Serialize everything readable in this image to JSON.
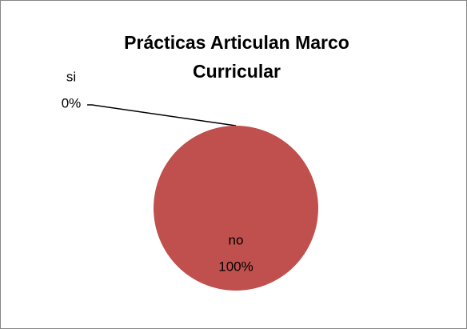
{
  "chart_data": {
    "type": "pie",
    "title": "Prácticas Articulan Marco Curricular",
    "categories": [
      "si",
      "no"
    ],
    "values": [
      0,
      100
    ],
    "value_labels": [
      "0%",
      "100%"
    ],
    "colors": [
      "#4f81bd",
      "#c0504d"
    ]
  }
}
